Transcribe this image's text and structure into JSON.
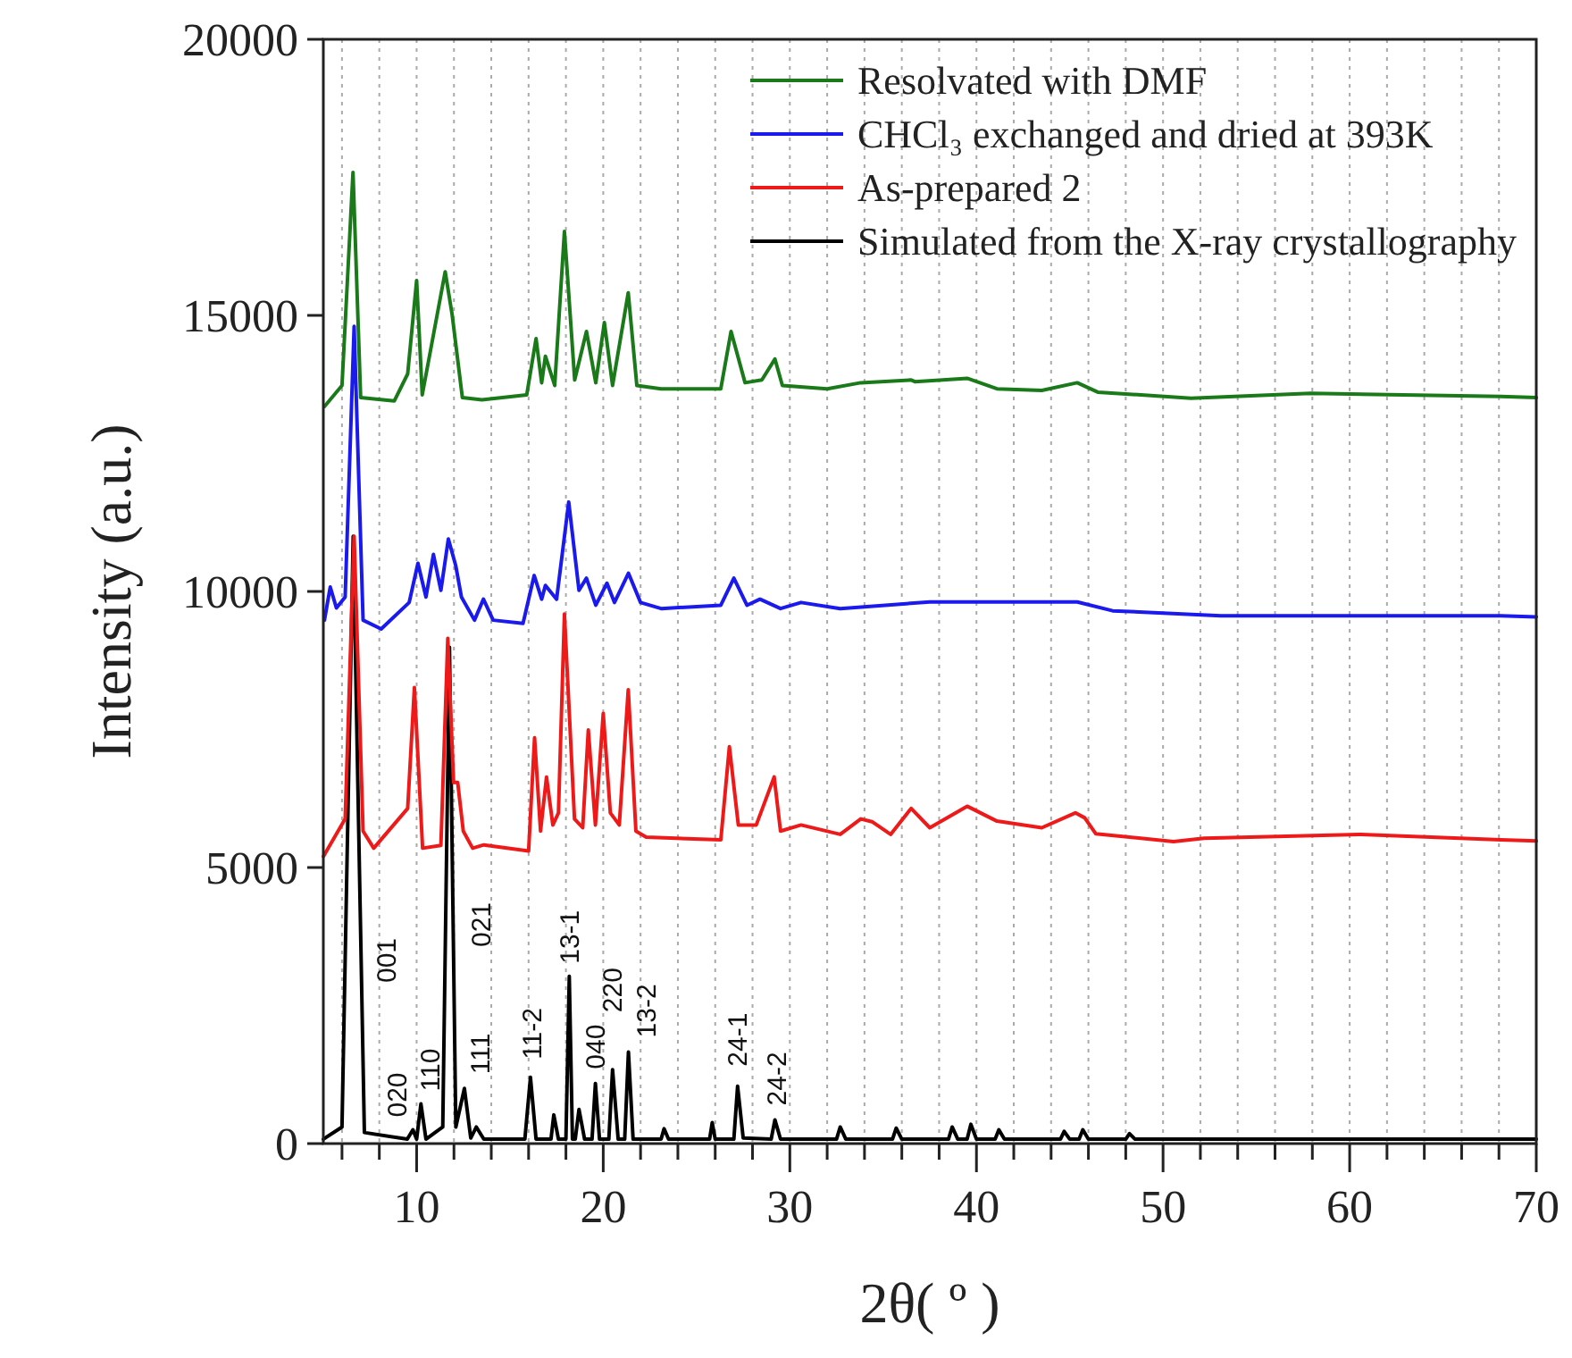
{
  "chart_data": {
    "type": "line",
    "xlabel": "2θ( º )",
    "ylabel": "Intensity (a.u.)",
    "xlim": [
      5,
      70
    ],
    "ylim": [
      0,
      20000
    ],
    "xticks": [
      {
        "value": 6,
        "label": null
      },
      {
        "value": 8,
        "label": null
      },
      10,
      {
        "value": 12,
        "label": null
      },
      {
        "value": 14,
        "label": null
      },
      {
        "value": 16,
        "label": null
      },
      {
        "value": 18,
        "label": null
      },
      20,
      {
        "value": 22,
        "label": null
      },
      {
        "value": 24,
        "label": null
      },
      {
        "value": 26,
        "label": null
      },
      {
        "value": 28,
        "label": null
      },
      30,
      {
        "value": 32,
        "label": null
      },
      {
        "value": 34,
        "label": null
      },
      {
        "value": 36,
        "label": null
      },
      {
        "value": 38,
        "label": null
      },
      40,
      {
        "value": 42,
        "label": null
      },
      {
        "value": 44,
        "label": null
      },
      {
        "value": 46,
        "label": null
      },
      {
        "value": 48,
        "label": null
      },
      50,
      {
        "value": 52,
        "label": null
      },
      {
        "value": 54,
        "label": null
      },
      {
        "value": 56,
        "label": null
      },
      {
        "value": 58,
        "label": null
      },
      60,
      {
        "value": 62,
        "label": null
      },
      {
        "value": 64,
        "label": null
      },
      {
        "value": 66,
        "label": null
      },
      {
        "value": 68,
        "label": null
      },
      70
    ],
    "yticks": [
      0,
      5000,
      10000,
      15000,
      20000
    ],
    "grid": "x",
    "legend": "top right",
    "series": [
      {
        "name": "Resolvated with DMF",
        "color": "#1a7a1a",
        "x": [
          5.06,
          6.0,
          6.59,
          7.0,
          8.8,
          9.52,
          10.0,
          10.3,
          11.53,
          11.9,
          12.17,
          12.45,
          13.5,
          15.9,
          16.4,
          16.7,
          16.9,
          17.4,
          17.92,
          18.47,
          19.1,
          19.6,
          20.06,
          20.5,
          21.34,
          21.8,
          23.1,
          26.3,
          26.85,
          27.6,
          28.5,
          29.2,
          29.6,
          32.0,
          33.8,
          36.5,
          36.7,
          39.5,
          41.1,
          43.5,
          45.4,
          46.5,
          51.5,
          57.9,
          68.1,
          70
        ],
        "values": [
          13350,
          13730,
          17590,
          13510,
          13450,
          13940,
          15630,
          13560,
          15790,
          15020,
          14280,
          13510,
          13470,
          13560,
          14580,
          13780,
          14260,
          13730,
          16520,
          13830,
          14710,
          13780,
          14870,
          13730,
          15410,
          13730,
          13670,
          13670,
          14710,
          13780,
          13830,
          14210,
          13730,
          13670,
          13780,
          13830,
          13800,
          13860,
          13670,
          13640,
          13780,
          13610,
          13500,
          13590,
          13530,
          13510
        ]
      },
      {
        "name": "CHCl₃ exchanged and dried at 393K",
        "color": "#1a1aee",
        "x": [
          5.06,
          5.37,
          5.7,
          6.17,
          6.65,
          7.13,
          8.1,
          9.6,
          10.07,
          10.5,
          10.9,
          11.3,
          11.7,
          12.1,
          12.4,
          13.1,
          13.58,
          14.1,
          15.7,
          16.3,
          16.7,
          16.9,
          17.5,
          18.15,
          18.7,
          19.1,
          19.6,
          20.2,
          20.6,
          21.35,
          22.0,
          23.1,
          26.3,
          27.0,
          27.7,
          28.4,
          29.5,
          30.6,
          32.7,
          37.5,
          41.6,
          45.4,
          47.3,
          53.1,
          68.1,
          70
        ],
        "values": [
          9480,
          10080,
          9700,
          9900,
          14800,
          9480,
          9320,
          9800,
          10510,
          9900,
          10670,
          10020,
          10950,
          10460,
          9900,
          9480,
          9860,
          9480,
          9420,
          10290,
          9860,
          10110,
          9860,
          11620,
          10020,
          10240,
          9750,
          10150,
          9800,
          10330,
          9800,
          9690,
          9750,
          10240,
          9750,
          9860,
          9690,
          9800,
          9690,
          9810,
          9810,
          9810,
          9650,
          9560,
          9560,
          9540
        ]
      },
      {
        "name": "As-prepared 2",
        "color": "#ee1a1a",
        "x": [
          5.0,
          6.17,
          6.65,
          7.13,
          7.7,
          9.52,
          9.88,
          10.32,
          11.3,
          11.67,
          11.98,
          12.2,
          12.5,
          13.0,
          13.6,
          16.0,
          16.32,
          16.64,
          16.96,
          17.3,
          17.6,
          17.92,
          18.46,
          18.9,
          19.2,
          19.58,
          20.0,
          20.38,
          20.86,
          21.34,
          21.75,
          22.3,
          26.3,
          26.76,
          27.24,
          28.2,
          29.16,
          29.5,
          30.6,
          32.7,
          33.8,
          34.4,
          35.4,
          36.5,
          37.5,
          39.5,
          41.1,
          43.5,
          45.3,
          45.8,
          46.4,
          50.56,
          52.2,
          60.5,
          68.1,
          70
        ],
        "values": [
          5200,
          5880,
          11000,
          5660,
          5350,
          6070,
          8260,
          5350,
          5400,
          9150,
          6540,
          6540,
          5660,
          5350,
          5410,
          5300,
          7350,
          5660,
          6640,
          5770,
          5990,
          9590,
          5880,
          5720,
          7490,
          5770,
          7790,
          5990,
          5770,
          8220,
          5660,
          5550,
          5500,
          7190,
          5770,
          5770,
          6640,
          5660,
          5770,
          5600,
          5880,
          5830,
          5600,
          6070,
          5720,
          6110,
          5840,
          5720,
          5990,
          5900,
          5610,
          5470,
          5530,
          5600,
          5500,
          5480
        ]
      },
      {
        "name": "Simulated from the X-ray crystallography",
        "color": "#000000",
        "x": [
          5.0,
          6.0,
          6.6,
          7.2,
          9.5,
          9.8,
          10.0,
          10.23,
          10.5,
          11.4,
          11.76,
          12.1,
          12.56,
          12.9,
          13.2,
          13.6,
          15.8,
          16.1,
          16.4,
          17.2,
          17.35,
          17.6,
          18.0,
          18.18,
          18.35,
          18.5,
          18.7,
          19.0,
          19.4,
          19.58,
          19.8,
          20.3,
          20.5,
          20.8,
          21.15,
          21.35,
          21.6,
          23.1,
          23.26,
          23.5,
          25.7,
          25.84,
          26.0,
          27.0,
          27.2,
          27.5,
          29.0,
          29.2,
          29.5,
          32.5,
          32.7,
          33.0,
          35.5,
          35.7,
          36.0,
          38.5,
          38.7,
          39.0,
          39.5,
          39.7,
          40.0,
          41.0,
          41.2,
          41.5,
          44.5,
          44.7,
          45.0,
          45.5,
          45.7,
          46.0,
          48.0,
          48.2,
          48.5,
          55,
          60,
          70
        ],
        "values": [
          80,
          300,
          11000,
          200,
          80,
          250,
          80,
          720,
          80,
          300,
          8990,
          300,
          1000,
          100,
          300,
          80,
          80,
          1200,
          80,
          80,
          520,
          80,
          80,
          3030,
          80,
          80,
          620,
          80,
          80,
          1090,
          80,
          80,
          1340,
          80,
          80,
          1660,
          80,
          80,
          270,
          80,
          80,
          380,
          80,
          80,
          1040,
          100,
          80,
          430,
          80,
          80,
          300,
          80,
          80,
          280,
          80,
          80,
          300,
          80,
          80,
          350,
          80,
          80,
          250,
          80,
          80,
          220,
          80,
          80,
          250,
          80,
          80,
          180,
          80,
          80,
          80,
          80
        ]
      }
    ],
    "annotations": [
      "001",
      {
        "text": "020",
        "x": 9.8,
        "y": 250
      },
      {
        "text": "110",
        "x": 10.23,
        "y": 720
      },
      {
        "text": "111",
        "x": 12.56,
        "y": 1000
      },
      "021",
      {
        "text": "11-2",
        "x": 16.1,
        "y": 1200
      },
      {
        "text": "13-1",
        "x": 18.18,
        "y": 3030
      },
      {
        "text": "040",
        "x": 19.58,
        "y": 1090
      },
      {
        "text": "220",
        "x": 20.5,
        "y": 1340
      },
      {
        "text": "13-2",
        "x": 21.35,
        "y": 1660
      },
      {
        "text": "24-1",
        "x": 27.2,
        "y": 1040
      },
      {
        "text": "24-2",
        "x": 29.2,
        "y": 430
      }
    ]
  }
}
